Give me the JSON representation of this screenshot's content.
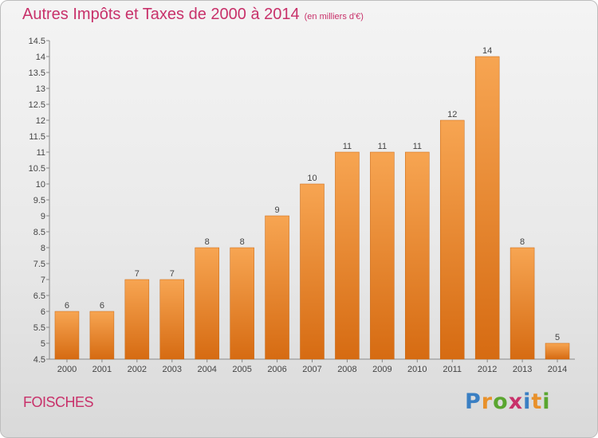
{
  "header": {
    "title": "Autres Impôts et Taxes de 2000 à 2014",
    "subtitle": "(en milliers d'€)"
  },
  "footer": {
    "town": "FOISCHES",
    "logo": "Proxiti"
  },
  "colors": {
    "title": "#c8316a",
    "bar_top": "#f7a552",
    "bar_bottom": "#d66b12",
    "logo_letters": [
      "#3a7fc3",
      "#e8912b",
      "#5aa630",
      "#c8316a",
      "#3a7fc3",
      "#e8912b",
      "#5aa630"
    ]
  },
  "chart_data": {
    "type": "bar",
    "categories": [
      "2000",
      "2001",
      "2002",
      "2003",
      "2004",
      "2005",
      "2006",
      "2007",
      "2008",
      "2009",
      "2010",
      "2011",
      "2012",
      "2013",
      "2014"
    ],
    "values": [
      6,
      6,
      7,
      7,
      8,
      8,
      9,
      10,
      11,
      11,
      11,
      12,
      14,
      8,
      5
    ],
    "data_labels": [
      "6",
      "6",
      "7",
      "7",
      "8",
      "8",
      "9",
      "10",
      "11",
      "11",
      "11",
      "12",
      "14",
      "8",
      "5"
    ],
    "title": "Autres Impôts et Taxes de 2000 à 2014",
    "xlabel": "",
    "ylabel": "",
    "ylim": [
      4.5,
      14.5
    ],
    "yticks": [
      4.5,
      5,
      5.5,
      6,
      6.5,
      7,
      7.5,
      8,
      8.5,
      9,
      9.5,
      10,
      10.5,
      11,
      11.5,
      12,
      12.5,
      13,
      13.5,
      14,
      14.5
    ],
    "ytick_labels": [
      "4.5",
      "5",
      "5.5",
      "6",
      "6.5",
      "7",
      "7.5",
      "8",
      "8.5",
      "9",
      "9.5",
      "10",
      "10.5",
      "11",
      "11.5",
      "12",
      "12.5",
      "13",
      "13.5",
      "14",
      "14.5"
    ],
    "grid": false,
    "legend": "none"
  }
}
